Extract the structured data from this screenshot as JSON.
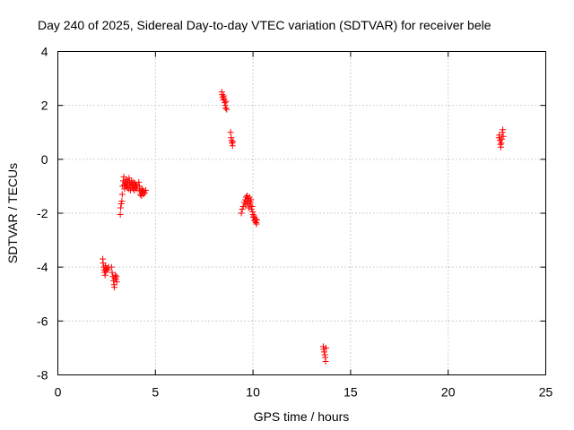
{
  "chart_data": {
    "type": "scatter",
    "title": "Day 240 of 2025, Sidereal Day-to-day VTEC variation (SDTVAR) for receiver bele",
    "xlabel": "GPS time / hours",
    "ylabel": "SDTVAR / TECUs",
    "xlim": [
      0,
      25
    ],
    "ylim": [
      -8,
      4
    ],
    "xticks": [
      0,
      5,
      10,
      15,
      20,
      25
    ],
    "yticks": [
      4,
      2,
      0,
      -2,
      -4,
      -6,
      -8
    ],
    "xtick_labels": [
      "0",
      "5",
      "10",
      "15",
      "20",
      "25"
    ],
    "ytick_labels": [
      "4",
      "2",
      "0",
      "-2",
      "-4",
      "-6",
      "-8"
    ],
    "grid": true,
    "marker": "+",
    "series": [
      {
        "name": "SDTVAR",
        "color": "#ff0000",
        "points": [
          [
            2.3,
            -3.7
          ],
          [
            2.32,
            -3.85
          ],
          [
            2.35,
            -4.0
          ],
          [
            2.38,
            -4.1
          ],
          [
            2.4,
            -4.2
          ],
          [
            2.42,
            -4.3
          ],
          [
            2.44,
            -3.95
          ],
          [
            2.46,
            -4.15
          ],
          [
            2.5,
            -4.05
          ],
          [
            2.55,
            -4.1
          ],
          [
            2.6,
            -4.0
          ],
          [
            2.75,
            -4.0
          ],
          [
            2.78,
            -4.2
          ],
          [
            2.82,
            -4.35
          ],
          [
            2.85,
            -4.5
          ],
          [
            2.88,
            -4.65
          ],
          [
            2.9,
            -4.75
          ],
          [
            2.92,
            -4.4
          ],
          [
            2.95,
            -4.3
          ],
          [
            2.98,
            -4.45
          ],
          [
            3.0,
            -4.35
          ],
          [
            3.02,
            -4.55
          ],
          [
            3.2,
            -2.05
          ],
          [
            3.22,
            -1.8
          ],
          [
            3.25,
            -1.65
          ],
          [
            3.28,
            -1.55
          ],
          [
            3.3,
            -1.3
          ],
          [
            3.32,
            -1.0
          ],
          [
            3.35,
            -0.8
          ],
          [
            3.38,
            -0.65
          ],
          [
            3.4,
            -0.95
          ],
          [
            3.42,
            -1.1
          ],
          [
            3.45,
            -0.85
          ],
          [
            3.48,
            -1.0
          ],
          [
            3.5,
            -0.75
          ],
          [
            3.52,
            -0.9
          ],
          [
            3.55,
            -1.05
          ],
          [
            3.58,
            -0.8
          ],
          [
            3.6,
            -0.95
          ],
          [
            3.62,
            -1.1
          ],
          [
            3.65,
            -0.7
          ],
          [
            3.68,
            -0.85
          ],
          [
            3.7,
            -1.0
          ],
          [
            3.72,
            -1.15
          ],
          [
            3.75,
            -0.9
          ],
          [
            3.78,
            -0.8
          ],
          [
            3.8,
            -1.05
          ],
          [
            3.82,
            -0.95
          ],
          [
            3.85,
            -1.1
          ],
          [
            3.88,
            -0.85
          ],
          [
            3.9,
            -1.0
          ],
          [
            3.92,
            -1.15
          ],
          [
            3.95,
            -0.9
          ],
          [
            3.98,
            -1.05
          ],
          [
            4.0,
            -0.95
          ],
          [
            4.02,
            -1.1
          ],
          [
            4.05,
            -1.0
          ],
          [
            4.15,
            -0.85
          ],
          [
            4.18,
            -1.0
          ],
          [
            4.2,
            -1.15
          ],
          [
            4.22,
            -1.3
          ],
          [
            4.25,
            -1.2
          ],
          [
            4.28,
            -1.35
          ],
          [
            4.3,
            -1.1
          ],
          [
            4.32,
            -1.25
          ],
          [
            4.35,
            -1.15
          ],
          [
            4.38,
            -1.3
          ],
          [
            4.4,
            -1.2
          ],
          [
            4.45,
            -1.25
          ],
          [
            4.5,
            -1.15
          ],
          [
            8.4,
            2.5
          ],
          [
            8.42,
            2.4
          ],
          [
            8.45,
            2.3
          ],
          [
            8.48,
            2.2
          ],
          [
            8.5,
            2.35
          ],
          [
            8.52,
            2.25
          ],
          [
            8.55,
            2.1
          ],
          [
            8.58,
            2.0
          ],
          [
            8.6,
            1.9
          ],
          [
            8.62,
            2.15
          ],
          [
            8.65,
            1.85
          ],
          [
            8.85,
            1.0
          ],
          [
            8.88,
            0.8
          ],
          [
            8.9,
            0.7
          ],
          [
            8.92,
            0.6
          ],
          [
            8.95,
            0.5
          ],
          [
            8.97,
            0.65
          ],
          [
            9.4,
            -2.0
          ],
          [
            9.45,
            -1.85
          ],
          [
            9.5,
            -1.75
          ],
          [
            9.55,
            -1.6
          ],
          [
            9.6,
            -1.5
          ],
          [
            9.62,
            -1.7
          ],
          [
            9.65,
            -1.4
          ],
          [
            9.68,
            -1.55
          ],
          [
            9.7,
            -1.35
          ],
          [
            9.72,
            -1.65
          ],
          [
            9.75,
            -1.45
          ],
          [
            9.78,
            -1.8
          ],
          [
            9.8,
            -1.55
          ],
          [
            9.82,
            -1.4
          ],
          [
            9.85,
            -1.7
          ],
          [
            9.88,
            -1.6
          ],
          [
            9.9,
            -1.5
          ],
          [
            9.92,
            -1.85
          ],
          [
            9.95,
            -1.75
          ],
          [
            9.98,
            -1.95
          ],
          [
            10.0,
            -2.05
          ],
          [
            10.02,
            -2.15
          ],
          [
            10.05,
            -2.1
          ],
          [
            10.08,
            -2.25
          ],
          [
            10.1,
            -2.3
          ],
          [
            10.12,
            -2.2
          ],
          [
            10.15,
            -2.35
          ],
          [
            10.18,
            -2.4
          ],
          [
            10.2,
            -2.25
          ],
          [
            13.6,
            -6.95
          ],
          [
            13.62,
            -7.05
          ],
          [
            13.65,
            -7.15
          ],
          [
            13.68,
            -7.25
          ],
          [
            13.7,
            -7.35
          ],
          [
            13.72,
            -7.5
          ],
          [
            13.74,
            -7.0
          ],
          [
            22.6,
            0.8
          ],
          [
            22.62,
            0.9
          ],
          [
            22.65,
            0.7
          ],
          [
            22.68,
            0.55
          ],
          [
            22.7,
            0.45
          ],
          [
            22.72,
            0.6
          ],
          [
            22.75,
            0.75
          ],
          [
            22.78,
            1.0
          ],
          [
            22.8,
            1.1
          ],
          [
            22.82,
            0.85
          ]
        ]
      }
    ]
  }
}
